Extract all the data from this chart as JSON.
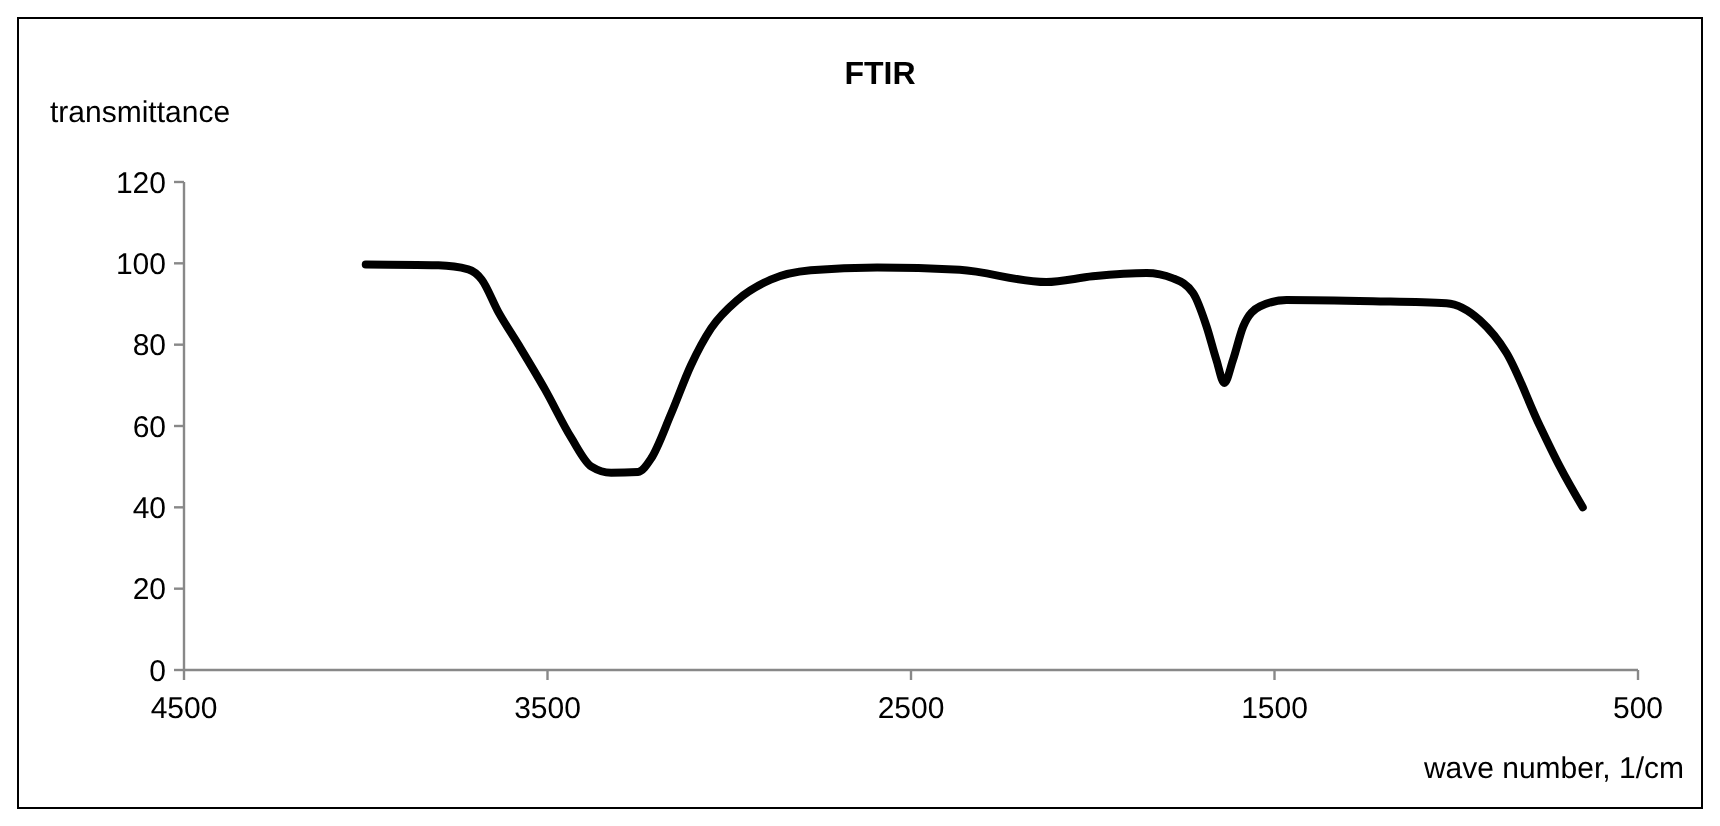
{
  "chart_data": {
    "type": "line",
    "title": "FTIR",
    "xlabel": "wave number, 1/cm",
    "ylabel": "transmittance",
    "x": [
      4000,
      3800,
      3718,
      3681,
      3635,
      3580,
      3507,
      3434,
      3379,
      3325,
      3251,
      3215,
      3160,
      3105,
      3050,
      2977,
      2886,
      2776,
      2593,
      2366,
      2128,
      2000,
      1852,
      1779,
      1724,
      1687,
      1660,
      1638,
      1614,
      1586,
      1540,
      1467,
      1229,
      1027,
      935,
      862,
      770,
      715,
      652
    ],
    "series": [
      {
        "color": "#000000",
        "values": [
          99.7,
          99.5,
          98.5,
          96,
          88,
          80,
          69,
          57,
          50,
          48.5,
          48.7,
          52,
          63,
          75,
          84,
          91,
          96,
          98.3,
          99,
          98.4,
          95.4,
          96.8,
          97.6,
          96.3,
          92.7,
          84.5,
          76.3,
          70.6,
          76.3,
          84.5,
          89.4,
          91,
          90.7,
          90.2,
          86,
          78,
          60,
          50,
          40
        ]
      }
    ],
    "xlim": [
      4500,
      500
    ],
    "xticks": [
      4500,
      3500,
      2500,
      1500,
      500
    ],
    "ylim": [
      0,
      120
    ],
    "yticks": [
      0,
      20,
      40,
      60,
      80,
      100,
      120
    ],
    "grid": false,
    "marker": "none",
    "line_style": "solid"
  }
}
